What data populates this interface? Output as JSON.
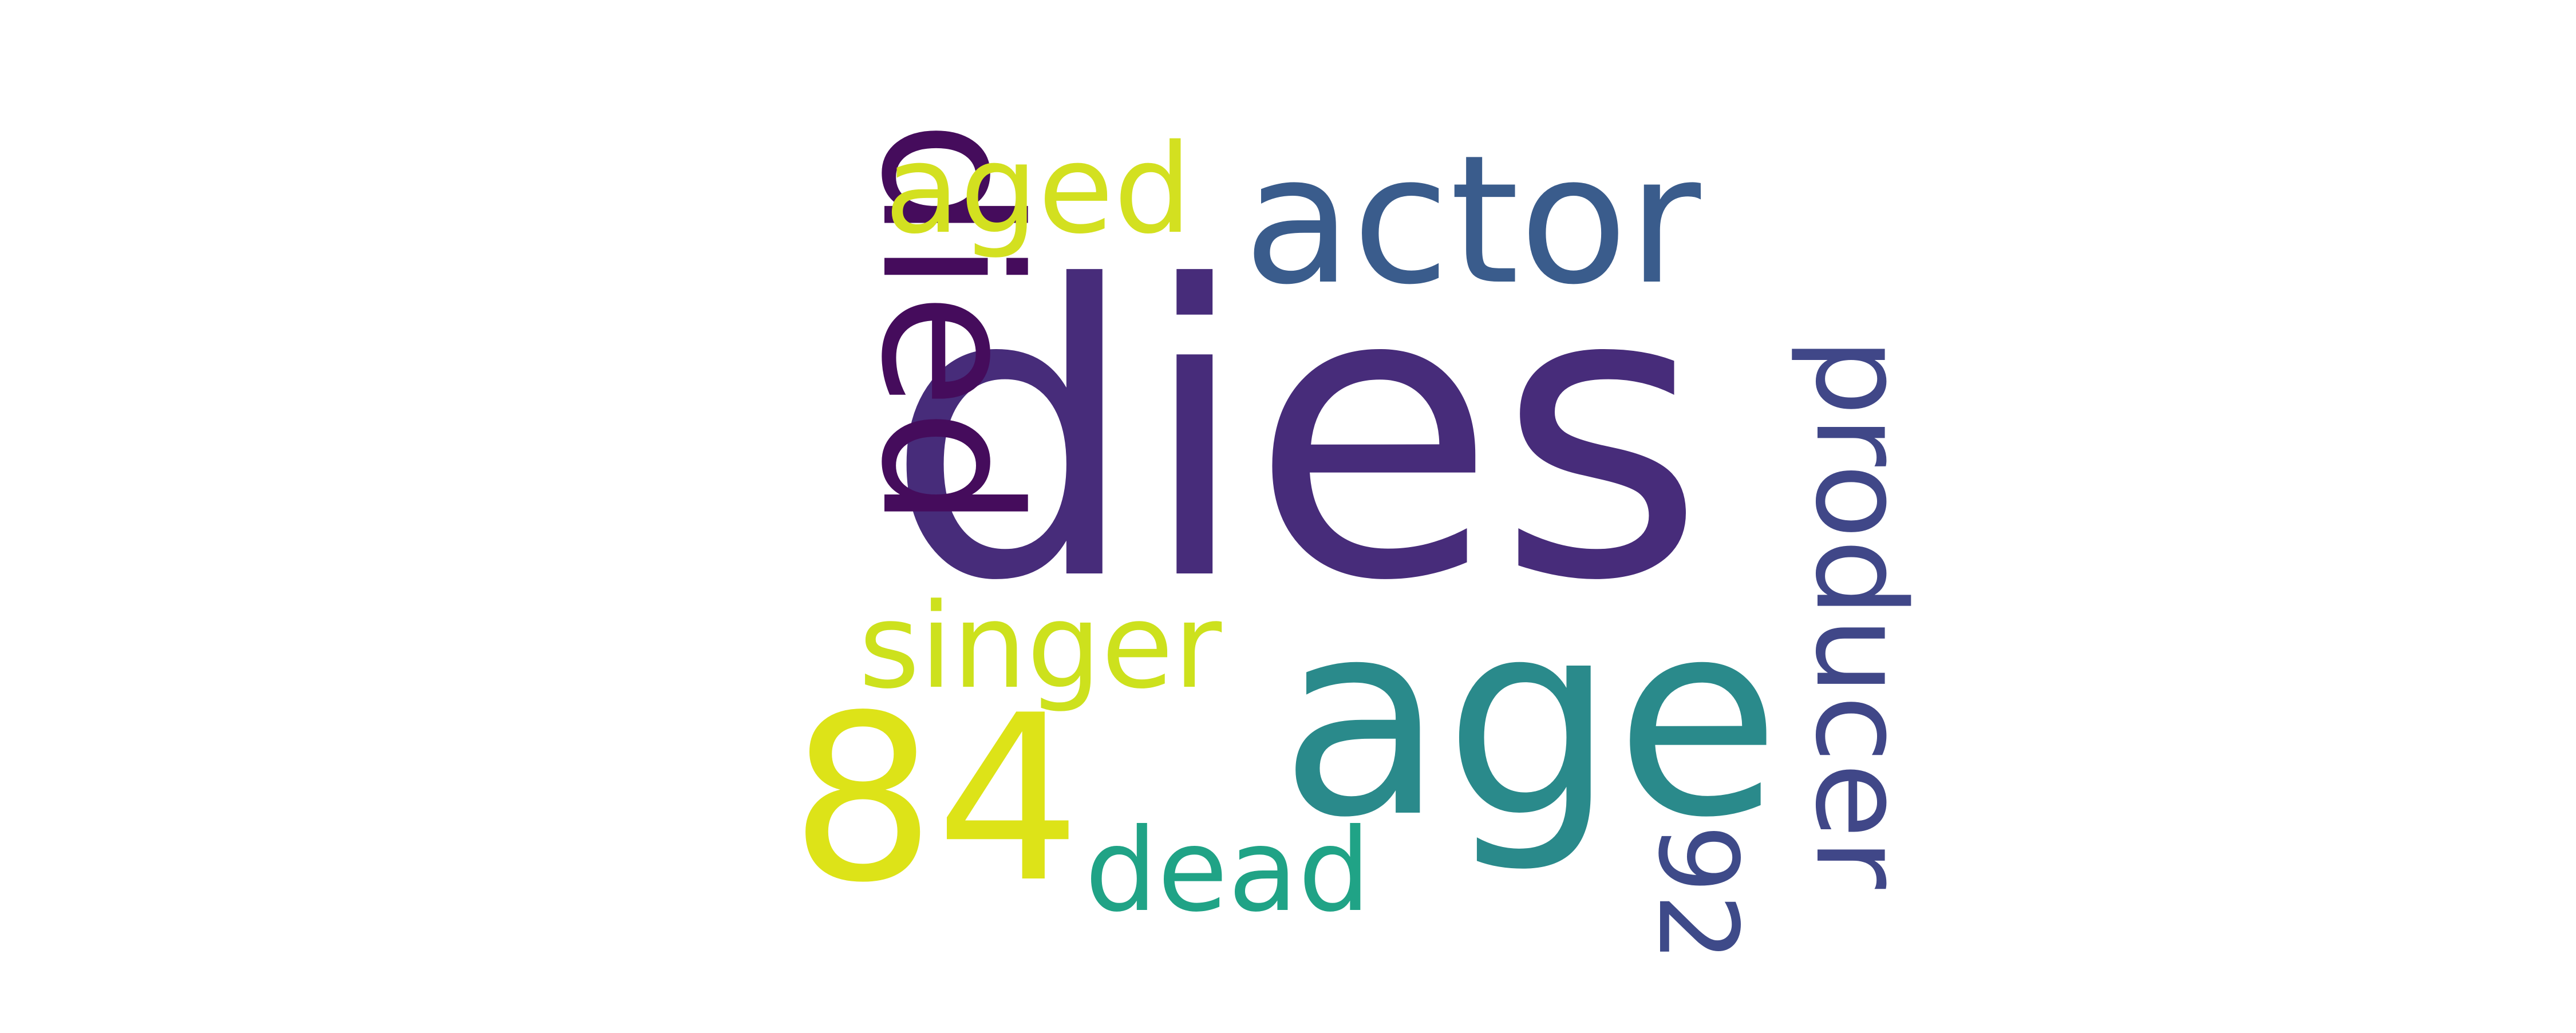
{
  "words": [
    {
      "id": "dies",
      "text": "dies",
      "color": "#472c7a",
      "weight": 1.0
    },
    {
      "id": "age",
      "text": "age",
      "color": "#2a8a8b",
      "weight": 0.72
    },
    {
      "id": "died",
      "text": "died",
      "color": "#450c5c",
      "weight": 0.6
    },
    {
      "id": "actor",
      "text": "actor",
      "color": "#3a5c8c",
      "weight": 0.45
    },
    {
      "id": "84",
      "text": "84",
      "color": "#dde318",
      "weight": 0.48
    },
    {
      "id": "aged",
      "text": "aged",
      "color": "#d3e020",
      "weight": 0.3
    },
    {
      "id": "singer",
      "text": "singer",
      "color": "#cde11d",
      "weight": 0.28
    },
    {
      "id": "producer",
      "text": "producer",
      "color": "#404788",
      "weight": 0.34
    },
    {
      "id": "dead",
      "text": "dead",
      "color": "#20a386",
      "weight": 0.26
    },
    {
      "id": "92",
      "text": "92",
      "color": "#3e4a89",
      "weight": 0.24
    }
  ]
}
